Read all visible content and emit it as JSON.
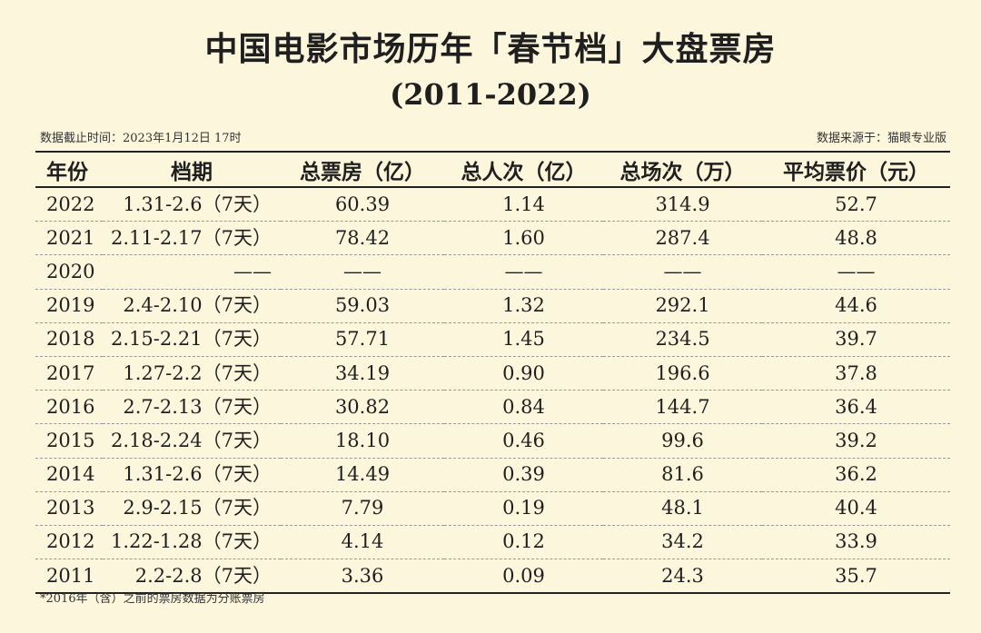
{
  "title": "中国电影市场历年「春节档」大盘票房",
  "subtitle": "(2011-2022)",
  "meta": {
    "cutoff_time": "数据截止时间：2023年1月12日 17时",
    "source": "数据来源于：猫眼专业版"
  },
  "table": {
    "headers": [
      "年份",
      "档期",
      "总票房（亿）",
      "总人次（亿）",
      "总场次（万）",
      "平均票价（元）"
    ],
    "rows": [
      [
        "2022",
        "1.31-2.6（7天）",
        "60.39",
        "1.14",
        "314.9",
        "52.7"
      ],
      [
        "2021",
        "2.11-2.17（7天）",
        "78.42",
        "1.60",
        "287.4",
        "48.8"
      ],
      [
        "2020",
        "——",
        "——",
        "——",
        "——",
        "——"
      ],
      [
        "2019",
        "2.4-2.10（7天）",
        "59.03",
        "1.32",
        "292.1",
        "44.6"
      ],
      [
        "2018",
        "2.15-2.21（7天）",
        "57.71",
        "1.45",
        "234.5",
        "39.7"
      ],
      [
        "2017",
        "1.27-2.2（7天）",
        "34.19",
        "0.90",
        "196.6",
        "37.8"
      ],
      [
        "2016",
        "2.7-2.13（7天）",
        "30.82",
        "0.84",
        "144.7",
        "36.4"
      ],
      [
        "2015",
        "2.18-2.24（7天）",
        "18.10",
        "0.46",
        "99.6",
        "39.2"
      ],
      [
        "2014",
        "1.31-2.6（7天）",
        "14.49",
        "0.39",
        "81.6",
        "36.2"
      ],
      [
        "2013",
        "2.9-2.15（7天）",
        "7.79",
        "0.19",
        "48.1",
        "40.4"
      ],
      [
        "2012",
        "1.22-1.28（7天）",
        "4.14",
        "0.12",
        "34.2",
        "33.9"
      ],
      [
        "2011",
        "2.2-2.8（7天）",
        "3.36",
        "0.09",
        "24.3",
        "35.7"
      ]
    ]
  },
  "footnote": "*2016年（含）之前的票房数据为分账票房"
}
